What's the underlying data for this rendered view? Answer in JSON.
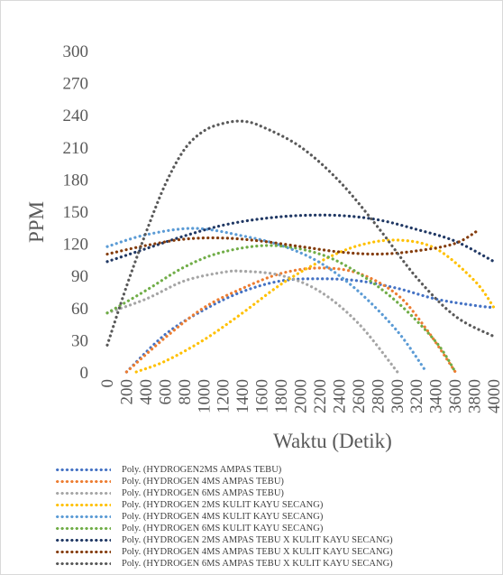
{
  "chart_data": {
    "type": "line",
    "title": "",
    "xlabel": "Waktu (Detik)",
    "ylabel": "PPM",
    "xlim": [
      0,
      4000
    ],
    "ylim": [
      0,
      300
    ],
    "x_ticks": [
      "0",
      "200",
      "400",
      "600",
      "800",
      "1000",
      "1200",
      "1400",
      "1600",
      "1800",
      "2000",
      "2200",
      "2400",
      "2600",
      "2800",
      "3000",
      "3200",
      "3400",
      "3600",
      "3800",
      "4000"
    ],
    "y_ticks": [
      "300",
      "270",
      "240",
      "210",
      "180",
      "150",
      "120",
      "90",
      "60",
      "30",
      "0"
    ],
    "grid": false,
    "legend_position": "bottom",
    "line_style": "dotted",
    "series": [
      {
        "name": "Poly. (HYDROGEN2MS AMPAS TEBU)",
        "color": "#4472c4",
        "points": [
          [
            200,
            0
          ],
          [
            600,
            35
          ],
          [
            1000,
            58
          ],
          [
            1400,
            75
          ],
          [
            1800,
            85
          ],
          [
            2200,
            87
          ],
          [
            2600,
            85
          ],
          [
            3000,
            78
          ],
          [
            3400,
            68
          ],
          [
            3800,
            62
          ],
          [
            4000,
            60
          ]
        ]
      },
      {
        "name": "Poly. (HYDROGEN 4MS AMPAS TEBU)",
        "color": "#ed7d31",
        "points": [
          [
            200,
            0
          ],
          [
            600,
            32
          ],
          [
            1000,
            60
          ],
          [
            1400,
            78
          ],
          [
            1800,
            92
          ],
          [
            2200,
            97
          ],
          [
            2600,
            92
          ],
          [
            3000,
            72
          ],
          [
            3300,
            40
          ],
          [
            3600,
            0
          ]
        ]
      },
      {
        "name": "Poly. (HYDROGEN 6MS AMPAS TEBU)",
        "color": "#a5a5a5",
        "points": [
          [
            0,
            55
          ],
          [
            400,
            68
          ],
          [
            800,
            85
          ],
          [
            1200,
            93
          ],
          [
            1400,
            94
          ],
          [
            1800,
            90
          ],
          [
            2200,
            75
          ],
          [
            2600,
            45
          ],
          [
            3000,
            0
          ]
        ]
      },
      {
        "name": "Poly. (HYDROGEN 2MS KULIT KAYU SECANG)",
        "color": "#ffc000",
        "points": [
          [
            300,
            0
          ],
          [
            600,
            10
          ],
          [
            1000,
            30
          ],
          [
            1400,
            55
          ],
          [
            1800,
            82
          ],
          [
            2200,
            103
          ],
          [
            2600,
            118
          ],
          [
            3000,
            123
          ],
          [
            3400,
            115
          ],
          [
            3800,
            85
          ],
          [
            4000,
            60
          ]
        ]
      },
      {
        "name": "Poly. (HYDROGEN 4MS KULIT KAYU SECANG)",
        "color": "#5b9bd5",
        "points": [
          [
            0,
            117
          ],
          [
            400,
            128
          ],
          [
            900,
            134
          ],
          [
            1400,
            127
          ],
          [
            1800,
            118
          ],
          [
            2200,
            102
          ],
          [
            2600,
            75
          ],
          [
            3000,
            38
          ],
          [
            3300,
            0
          ]
        ]
      },
      {
        "name": "Poly. (HYDROGEN 6MS KULIT KAYU SECANG)",
        "color": "#70ad47",
        "points": [
          [
            0,
            55
          ],
          [
            400,
            76
          ],
          [
            800,
            98
          ],
          [
            1200,
            112
          ],
          [
            1700,
            118
          ],
          [
            2200,
            110
          ],
          [
            2600,
            92
          ],
          [
            3000,
            65
          ],
          [
            3400,
            28
          ],
          [
            3600,
            0
          ]
        ]
      },
      {
        "name": "Poly. (HYDROGEN 2MS AMPAS TEBU X KULIT KAYU SECANG)",
        "color": "#203864",
        "points": [
          [
            0,
            103
          ],
          [
            400,
            115
          ],
          [
            800,
            127
          ],
          [
            1200,
            137
          ],
          [
            1600,
            143
          ],
          [
            2000,
            146
          ],
          [
            2400,
            146
          ],
          [
            2800,
            142
          ],
          [
            3200,
            133
          ],
          [
            3600,
            122
          ],
          [
            4000,
            103
          ]
        ]
      },
      {
        "name": "Poly. (HYDROGEN 4MS AMPAS TEBU X KULIT KAYU SECANG)",
        "color": "#843c0c",
        "points": [
          [
            0,
            110
          ],
          [
            400,
            118
          ],
          [
            800,
            124
          ],
          [
            1200,
            125
          ],
          [
            1600,
            122
          ],
          [
            2000,
            117
          ],
          [
            2400,
            112
          ],
          [
            2800,
            110
          ],
          [
            3200,
            113
          ],
          [
            3600,
            120
          ],
          [
            3850,
            133
          ]
        ]
      },
      {
        "name": "Poly. (HYDROGEN 6MS AMPAS TEBU X KULIT KAYU SECANG)",
        "color": "#595959",
        "points": [
          [
            0,
            25
          ],
          [
            200,
            80
          ],
          [
            400,
            130
          ],
          [
            600,
            175
          ],
          [
            800,
            208
          ],
          [
            1000,
            225
          ],
          [
            1200,
            232
          ],
          [
            1400,
            234
          ],
          [
            1600,
            229
          ],
          [
            2000,
            210
          ],
          [
            2400,
            178
          ],
          [
            2800,
            135
          ],
          [
            3200,
            88
          ],
          [
            3600,
            52
          ],
          [
            4000,
            33
          ]
        ]
      }
    ]
  }
}
